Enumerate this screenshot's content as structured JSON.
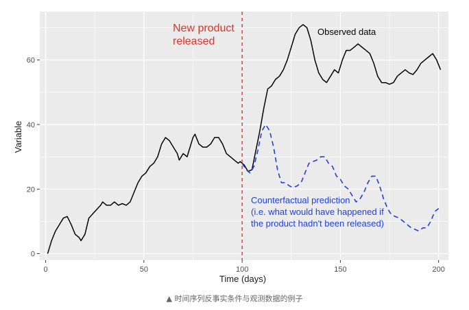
{
  "chart_data": {
    "type": "line",
    "xlabel": "Time (days)",
    "ylabel": "Variable",
    "xlim": [
      -3,
      205
    ],
    "ylim": [
      -2,
      75
    ],
    "x_ticks": [
      0,
      50,
      100,
      150,
      200
    ],
    "y_ticks": [
      0,
      20,
      40,
      60
    ],
    "grid": true,
    "legend": "none",
    "intervention_x": 100,
    "series": [
      {
        "name": "Observed data",
        "color": "#000000",
        "style": "solid",
        "points": [
          [
            1,
            0
          ],
          [
            3,
            4
          ],
          [
            5,
            7
          ],
          [
            7,
            9
          ],
          [
            9,
            11
          ],
          [
            11,
            11.5
          ],
          [
            13,
            9
          ],
          [
            15,
            6
          ],
          [
            17,
            5
          ],
          [
            18,
            4
          ],
          [
            20,
            6
          ],
          [
            22,
            11
          ],
          [
            25,
            13
          ],
          [
            28,
            15
          ],
          [
            29,
            16
          ],
          [
            31,
            15
          ],
          [
            33,
            15
          ],
          [
            35,
            16
          ],
          [
            37,
            15
          ],
          [
            39,
            15.5
          ],
          [
            41,
            15
          ],
          [
            43,
            16
          ],
          [
            45,
            19
          ],
          [
            47,
            22
          ],
          [
            49,
            24
          ],
          [
            51,
            25
          ],
          [
            53,
            27
          ],
          [
            55,
            28
          ],
          [
            57,
            30
          ],
          [
            59,
            34
          ],
          [
            61,
            36
          ],
          [
            63,
            35
          ],
          [
            65,
            33
          ],
          [
            67,
            31
          ],
          [
            68,
            29
          ],
          [
            70,
            31
          ],
          [
            72,
            30
          ],
          [
            74,
            34
          ],
          [
            75,
            36
          ],
          [
            76,
            37
          ],
          [
            78,
            34
          ],
          [
            80,
            33
          ],
          [
            82,
            33
          ],
          [
            84,
            34
          ],
          [
            86,
            36
          ],
          [
            88,
            36
          ],
          [
            90,
            34
          ],
          [
            92,
            31
          ],
          [
            94,
            30
          ],
          [
            96,
            29
          ],
          [
            98,
            28
          ],
          [
            99,
            28.5
          ],
          [
            101,
            27.5
          ],
          [
            103,
            25.5
          ],
          [
            105,
            26
          ],
          [
            107,
            32
          ],
          [
            109,
            38
          ],
          [
            111,
            45
          ],
          [
            113,
            51
          ],
          [
            115,
            52
          ],
          [
            117,
            54
          ],
          [
            119,
            55
          ],
          [
            121,
            57
          ],
          [
            123,
            60
          ],
          [
            125,
            64
          ],
          [
            127,
            68
          ],
          [
            129,
            70
          ],
          [
            131,
            71
          ],
          [
            133,
            70
          ],
          [
            135,
            66
          ],
          [
            137,
            60
          ],
          [
            139,
            56
          ],
          [
            141,
            54
          ],
          [
            143,
            53
          ],
          [
            145,
            55
          ],
          [
            147,
            57
          ],
          [
            149,
            56
          ],
          [
            151,
            60
          ],
          [
            153,
            63
          ],
          [
            155,
            63
          ],
          [
            157,
            64
          ],
          [
            159,
            65
          ],
          [
            161,
            64
          ],
          [
            163,
            63
          ],
          [
            165,
            62
          ],
          [
            167,
            59
          ],
          [
            169,
            55
          ],
          [
            171,
            53
          ],
          [
            173,
            53
          ],
          [
            175,
            52.5
          ],
          [
            177,
            53
          ],
          [
            179,
            55
          ],
          [
            181,
            56
          ],
          [
            183,
            57
          ],
          [
            185,
            56
          ],
          [
            187,
            55.5
          ],
          [
            189,
            57
          ],
          [
            191,
            59
          ],
          [
            193,
            60
          ],
          [
            195,
            61
          ],
          [
            197,
            62
          ],
          [
            199,
            60
          ],
          [
            201,
            57
          ]
        ]
      },
      {
        "name": "",
        "color": "#1f3fe0",
        "style": "dashed",
        "points": [
          [
            100,
            28
          ],
          [
            102,
            26
          ],
          [
            104,
            25
          ],
          [
            106,
            27
          ],
          [
            108,
            32
          ],
          [
            110,
            38
          ],
          [
            112,
            40
          ],
          [
            114,
            38
          ],
          [
            116,
            33
          ],
          [
            118,
            26
          ],
          [
            120,
            22
          ],
          [
            122,
            22
          ],
          [
            124,
            21
          ],
          [
            126,
            20.5
          ],
          [
            128,
            21
          ],
          [
            130,
            22
          ],
          [
            132,
            25
          ],
          [
            134,
            28
          ],
          [
            136,
            28.5
          ],
          [
            138,
            29
          ],
          [
            140,
            30
          ],
          [
            142,
            30
          ],
          [
            144,
            28
          ],
          [
            146,
            27
          ],
          [
            148,
            24
          ],
          [
            150,
            23
          ],
          [
            152,
            21
          ],
          [
            154,
            20
          ],
          [
            156,
            18
          ],
          [
            158,
            16
          ],
          [
            160,
            17
          ],
          [
            162,
            19
          ],
          [
            164,
            22
          ],
          [
            166,
            24
          ],
          [
            168,
            24
          ],
          [
            170,
            21
          ],
          [
            172,
            17
          ],
          [
            174,
            14
          ],
          [
            176,
            12
          ],
          [
            178,
            11.5
          ],
          [
            180,
            11
          ],
          [
            182,
            10
          ],
          [
            184,
            9
          ],
          [
            186,
            8
          ],
          [
            188,
            7.5
          ],
          [
            190,
            7
          ],
          [
            192,
            8
          ],
          [
            194,
            8
          ],
          [
            196,
            10
          ],
          [
            198,
            13
          ],
          [
            200,
            14
          ]
        ]
      }
    ],
    "annotations": {
      "release_text": [
        "New product",
        "released"
      ],
      "observed_text": "Observed data",
      "counterfactual_text": [
        "Counterfactual prediction",
        "(i.e. what would have happened if",
        "the product hadn't been released)"
      ]
    },
    "colors": {
      "panel": "#ebebeb",
      "grid": "#ffffff",
      "observed": "#000000",
      "counterfactual": "#1f3fe0",
      "release_line": "#e8302a"
    }
  },
  "caption": "▲ 时间序列反事实条件与观测数据的例子"
}
